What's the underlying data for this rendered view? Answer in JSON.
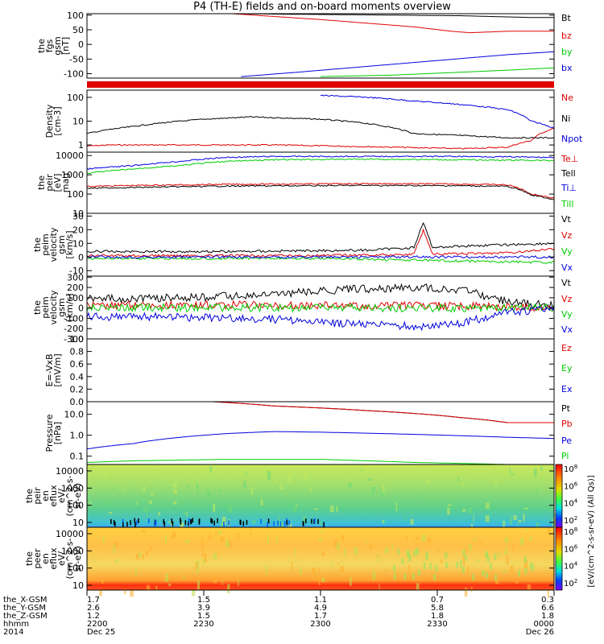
{
  "title": "P4 (TH-E) fields and on-board moments overview",
  "colors": {
    "black": "#000000",
    "red": "#e00000",
    "green": "#00cc00",
    "blue": "#0000dd"
  },
  "chart_data": [
    {
      "type": "line",
      "ylabel": [
        "the",
        "fgs",
        "gsm",
        "[nT]"
      ],
      "yticks": [
        "100",
        "50",
        "0",
        "-50",
        "-100"
      ],
      "ylim": [
        -115,
        105
      ],
      "series": [
        {
          "name": "Bt",
          "color": "black",
          "x": [
            0.31,
            0.45,
            0.6,
            0.8,
            0.95,
            1.0
          ],
          "y": [
            105,
            103,
            101,
            98,
            92,
            92
          ]
        },
        {
          "name": "bz",
          "color": "red",
          "x": [
            0.31,
            0.5,
            0.7,
            0.78,
            0.82,
            0.9,
            1.0
          ],
          "y": [
            105,
            85,
            60,
            45,
            40,
            45,
            45
          ]
        },
        {
          "name": "by",
          "color": "green",
          "x": [
            0.5,
            0.65,
            0.8,
            0.9,
            1.0
          ],
          "y": [
            -110,
            -105,
            -95,
            -88,
            -80
          ]
        },
        {
          "name": "bx",
          "color": "blue",
          "x": [
            0.33,
            0.45,
            0.6,
            0.75,
            0.9,
            1.0
          ],
          "y": [
            -110,
            -95,
            -75,
            -55,
            -35,
            -25
          ]
        }
      ]
    },
    {
      "type": "line",
      "ylabel": [
        "Density",
        "[cm-3]"
      ],
      "yticks": [
        "100",
        "10",
        "1"
      ],
      "log": true,
      "ylim": [
        0.5,
        200
      ],
      "series": [
        {
          "name": "Ne",
          "color": "red",
          "x": [
            0,
            0.05,
            0.2,
            0.4,
            0.6,
            0.8,
            0.9,
            0.95,
            1.0
          ],
          "y": [
            0.9,
            1.0,
            1.0,
            1.0,
            0.85,
            0.7,
            0.8,
            1.5,
            5
          ]
        },
        {
          "name": "Ni",
          "color": "black",
          "x": [
            0,
            0.1,
            0.25,
            0.35,
            0.5,
            0.6,
            0.7,
            0.8,
            0.9,
            1.0
          ],
          "y": [
            3,
            6,
            12,
            15,
            12,
            8,
            3,
            2.5,
            2,
            2
          ]
        },
        {
          "name": "Npot",
          "color": "blue",
          "x": [
            0.5,
            0.6,
            0.7,
            0.8,
            0.9,
            0.95,
            1.0
          ],
          "y": [
            120,
            100,
            70,
            50,
            30,
            10,
            5
          ]
        }
      ]
    },
    {
      "type": "line",
      "ylabel": [
        "the",
        "peir",
        "[eV]",
        "mag"
      ],
      "yticks": [
        "10000",
        "1000",
        "100",
        "10"
      ],
      "log": true,
      "ylim": [
        10,
        15000
      ],
      "series": [
        {
          "name": "Te⊥",
          "color": "red",
          "x": [
            0,
            0.1,
            0.3,
            0.6,
            0.8,
            0.9,
            0.95,
            1.0
          ],
          "y": [
            250,
            280,
            320,
            350,
            330,
            300,
            100,
            60
          ]
        },
        {
          "name": "Tell",
          "color": "black",
          "x": [
            0,
            0.1,
            0.3,
            0.6,
            0.8,
            0.9,
            0.95,
            1.0
          ],
          "y": [
            200,
            220,
            260,
            280,
            270,
            250,
            90,
            50
          ]
        },
        {
          "name": "Ti⊥",
          "color": "blue",
          "x": [
            0,
            0.1,
            0.2,
            0.3,
            0.4,
            0.6,
            0.8,
            1.0
          ],
          "y": [
            2000,
            3000,
            5000,
            8000,
            9000,
            9000,
            9000,
            8000
          ]
        },
        {
          "name": "Till",
          "color": "green",
          "x": [
            0,
            0.1,
            0.2,
            0.3,
            0.4,
            0.6,
            0.8,
            1.0
          ],
          "y": [
            1200,
            2000,
            3000,
            5000,
            6000,
            6500,
            6000,
            5500
          ]
        }
      ]
    },
    {
      "type": "line",
      "ylabel": [
        "the",
        "peim",
        "velocity",
        "gsm",
        "[km/s]"
      ],
      "yticks": [
        "30",
        "20",
        "10",
        "0",
        "-10"
      ],
      "ylim": [
        -14,
        32
      ],
      "series": [
        {
          "name": "Vt",
          "color": "black",
          "x": [
            0,
            0.3,
            0.6,
            0.7,
            0.72,
            0.74,
            0.8,
            1.0
          ],
          "y": [
            4,
            4,
            5,
            7,
            25,
            7,
            8,
            10
          ]
        },
        {
          "name": "Vz",
          "color": "red",
          "x": [
            0,
            0.5,
            0.7,
            0.72,
            0.74,
            0.9,
            1.0
          ],
          "y": [
            1,
            1,
            2,
            20,
            2,
            3,
            6
          ]
        },
        {
          "name": "Vy",
          "color": "green",
          "x": [
            0,
            0.5,
            0.8,
            1.0
          ],
          "y": [
            -1,
            -1,
            -3,
            -4
          ]
        },
        {
          "name": "Vx",
          "color": "blue",
          "x": [
            0,
            0.5,
            1.0
          ],
          "y": [
            0,
            0,
            0
          ]
        }
      ]
    },
    {
      "type": "line",
      "ylabel": [
        "the",
        "peim",
        "velocity",
        "gsm",
        "[km/s]"
      ],
      "yticks": [
        "300",
        "200",
        "100",
        "0",
        "-100",
        "-200",
        "-300"
      ],
      "ylim": [
        -300,
        310
      ],
      "series": [
        {
          "name": "Vt",
          "color": "black",
          "x": [
            0,
            0.2,
            0.4,
            0.55,
            0.7,
            0.8,
            0.9,
            1.0
          ],
          "y": [
            90,
            100,
            130,
            180,
            200,
            180,
            60,
            20
          ]
        },
        {
          "name": "Vz",
          "color": "red",
          "x": [
            0,
            0.3,
            0.6,
            0.8,
            1.0
          ],
          "y": [
            30,
            30,
            20,
            20,
            0
          ]
        },
        {
          "name": "Vy",
          "color": "green",
          "x": [
            0,
            0.3,
            0.6,
            0.8,
            1.0
          ],
          "y": [
            0,
            5,
            0,
            0,
            0
          ]
        },
        {
          "name": "Vx",
          "color": "blue",
          "x": [
            0,
            0.2,
            0.4,
            0.55,
            0.7,
            0.8,
            0.9,
            1.0
          ],
          "y": [
            -80,
            -90,
            -110,
            -150,
            -180,
            -150,
            -40,
            -10
          ]
        }
      ]
    },
    {
      "type": "line",
      "ylabel": [
        "E=-VxB",
        "[mV/m]"
      ],
      "yticks": [
        "1.0",
        "0.8",
        "0.6",
        "0.4",
        "0.2",
        "0.0"
      ],
      "ylim": [
        0,
        1
      ],
      "series": [
        {
          "name": "Ez",
          "color": "red",
          "x": [],
          "y": []
        },
        {
          "name": "Ey",
          "color": "green",
          "x": [],
          "y": []
        },
        {
          "name": "Ex",
          "color": "blue",
          "x": [],
          "y": []
        }
      ]
    },
    {
      "type": "line",
      "ylabel": [
        "Pressure",
        "[nPa]"
      ],
      "yticks": [
        "10.0",
        "1.0",
        "0.1"
      ],
      "log": true,
      "ylim": [
        0.04,
        40
      ],
      "series": [
        {
          "name": "Pt",
          "color": "black",
          "x": [
            0.27,
            0.4,
            0.6,
            0.8,
            0.9,
            1.0
          ],
          "y": [
            40,
            25,
            15,
            7,
            4,
            4
          ]
        },
        {
          "name": "Pb",
          "color": "red",
          "x": [
            0.27,
            0.4,
            0.6,
            0.8,
            0.9,
            1.0
          ],
          "y": [
            40,
            25,
            15,
            7,
            4,
            4
          ]
        },
        {
          "name": "Pe",
          "color": "blue",
          "x": [
            0,
            0.1,
            0.2,
            0.3,
            0.4,
            0.5,
            0.7,
            0.9,
            1.0
          ],
          "y": [
            0.22,
            0.4,
            0.8,
            1.2,
            1.5,
            1.4,
            1.1,
            0.8,
            0.7
          ]
        },
        {
          "name": "Pi",
          "color": "green",
          "x": [
            0,
            0.1,
            0.3,
            0.5,
            0.7,
            0.9,
            1.0
          ],
          "y": [
            0.05,
            0.06,
            0.07,
            0.07,
            0.05,
            0.04,
            0.04
          ]
        }
      ]
    },
    {
      "type": "heatmap",
      "ylabel": [
        "the",
        "peir",
        "en",
        "eflux",
        "eV/",
        "(cm^2-s-",
        "sr-eV)"
      ],
      "yticks": [
        "10000",
        "1000",
        "100",
        "10"
      ],
      "colorbar_ticks": [
        "10^8",
        "10^6",
        "10^4",
        "10^2"
      ],
      "colorbar_label": "[eV/(cm^2-s-sr-eV) (All Qs)]",
      "dominant": "green"
    },
    {
      "type": "heatmap",
      "ylabel": [
        "the",
        "peer",
        "en",
        "eflux",
        "eV/",
        "(cm^2-s-",
        "sr-eV)"
      ],
      "yticks": [
        "10000",
        "1000",
        "100",
        "10"
      ],
      "colorbar_ticks": [
        "10^8",
        "10^6",
        "10^4",
        "10^2"
      ],
      "colorbar_label": "[eV/(cm^2-s-sr-eV) (All Qs)]",
      "dominant": "orange"
    }
  ],
  "xaxis": {
    "rows": [
      {
        "label": "the_X-GSM",
        "values": [
          "1.7",
          "1.5",
          "1.1",
          "0.7",
          "0.3"
        ]
      },
      {
        "label": "the_Y-GSM",
        "values": [
          "2.6",
          "3.9",
          "4.9",
          "5.8",
          "6.6"
        ]
      },
      {
        "label": "the_Z-GSM",
        "values": [
          "1.2",
          "1.5",
          "1.7",
          "1.8",
          "1.8"
        ]
      },
      {
        "label": "hhmm",
        "values": [
          "2200",
          "2230",
          "2300",
          "2330",
          "0000"
        ]
      },
      {
        "label": "2014",
        "values": [
          "Dec 25",
          "",
          "",
          "",
          "Dec 26"
        ]
      }
    ]
  }
}
